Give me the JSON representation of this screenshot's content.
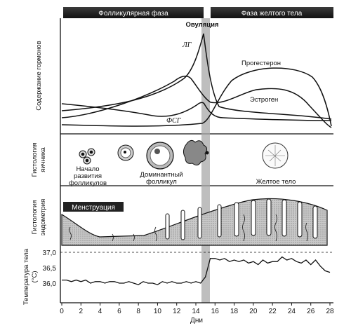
{
  "phases": {
    "follicular": "Фолликулярная фаза",
    "luteal": "Фаза желтого тела"
  },
  "hormones": {
    "ylabel": "Содержание гормонов",
    "ovulation": "Овуляция",
    "lh": "ЛГ",
    "fsh": "ФСГ",
    "progesterone": "Прогестерон",
    "estrogen": "Эстроген"
  },
  "ovary": {
    "ylabel_line1": "Гистология",
    "ylabel_line2": "яичника",
    "stage1_line1": "Начало",
    "stage1_line2": "развития",
    "stage1_line3": "фолликулов",
    "stage2_line1": "Доминантный",
    "stage2_line2": "фолликул",
    "stage3": "Желтое тело"
  },
  "endometrium": {
    "ylabel_line1": "Гистология",
    "ylabel_line2": "эндометрия",
    "menstruation": "Менструация"
  },
  "temperature": {
    "ylabel_line1": "Температура тела",
    "ylabel_line2": "(°C)",
    "ticks": [
      "37,0",
      "36,5",
      "36,0"
    ]
  },
  "xaxis": {
    "label": "Дни",
    "ticks": [
      "0",
      "2",
      "4",
      "6",
      "8",
      "10",
      "12",
      "14",
      "16",
      "18",
      "20",
      "22",
      "24",
      "26",
      "28"
    ]
  },
  "chart_data": {
    "type": "line",
    "xlabel": "Дни",
    "ylabel": "Температура тела (°C)",
    "xlim": [
      0,
      28
    ],
    "ylim": [
      35.6,
      37.0
    ],
    "x": [
      0,
      0.5,
      1,
      1.5,
      2,
      2.5,
      3,
      3.5,
      4,
      4.5,
      5,
      5.5,
      6,
      6.5,
      7,
      7.5,
      8,
      8.5,
      9,
      9.5,
      10,
      10.5,
      11,
      11.5,
      12,
      12.5,
      13,
      13.5,
      14,
      14.5,
      15,
      15.5,
      16,
      16.5,
      17,
      17.5,
      18,
      18.5,
      19,
      19.5,
      20,
      20.5,
      21,
      21.5,
      22,
      22.5,
      23,
      23.5,
      24,
      24.5,
      25,
      25.5,
      26,
      26.5,
      27,
      27.5,
      28
    ],
    "series": [
      {
        "values": [
          36.1,
          36.1,
          36.05,
          36.1,
          36.05,
          36.1,
          36.0,
          36.05,
          36.05,
          36.0,
          36.05,
          36.05,
          36.0,
          36.0,
          36.05,
          36.0,
          35.95,
          36.05,
          36.0,
          36.0,
          35.95,
          36.05,
          36.0,
          36.05,
          36.0,
          36.0,
          36.05,
          36.0,
          36.05,
          36.0,
          36.2,
          36.8,
          36.8,
          36.75,
          36.8,
          36.7,
          36.75,
          36.7,
          36.75,
          36.65,
          36.7,
          36.6,
          36.75,
          36.65,
          36.7,
          36.7,
          36.85,
          36.75,
          36.8,
          36.7,
          36.65,
          36.75,
          36.6,
          36.75,
          36.55,
          36.4,
          36.35
        ]
      }
    ]
  }
}
